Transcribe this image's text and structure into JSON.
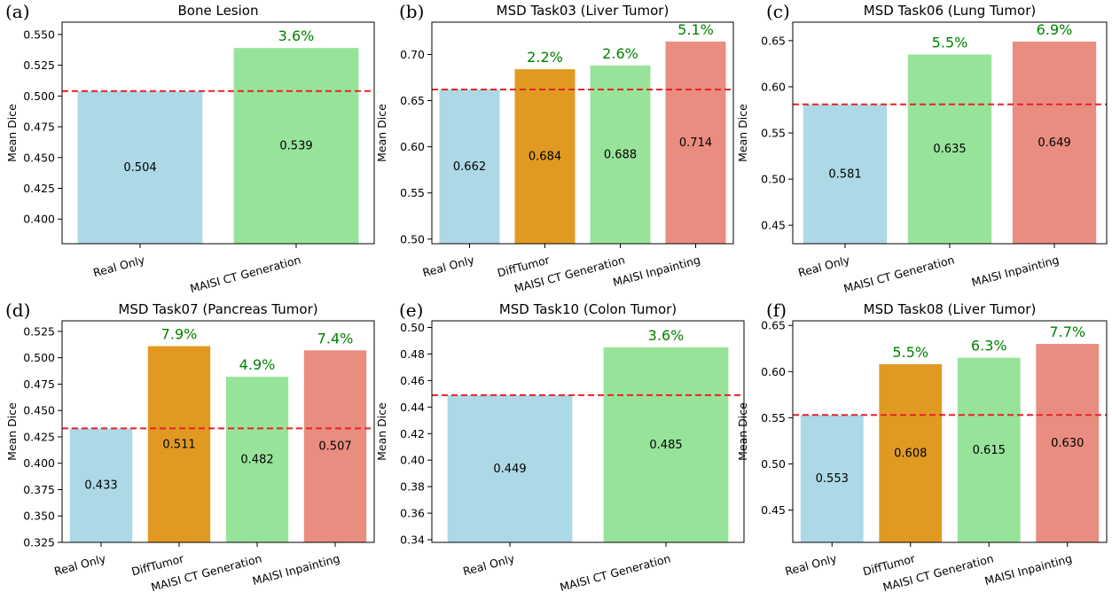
{
  "colors": {
    "Real Only": "#add8e6",
    "DiffTumor": "#e09a22",
    "MAISI CT Generation": "#98e39a",
    "MAISI Inpainting": "#e98d80",
    "baseline": "#e8212a",
    "improvement_text": "#008000"
  },
  "chart_data": [
    {
      "type": "bar",
      "panel": "(a)",
      "title": "Bone Lesion",
      "ylabel": "Mean Dice",
      "ylim": [
        0.38,
        0.56
      ],
      "yticks": [
        "0.400",
        "0.425",
        "0.450",
        "0.475",
        "0.500",
        "0.525",
        "0.550"
      ],
      "categories": [
        "Real Only",
        "MAISI CT Generation"
      ],
      "values": [
        0.504,
        0.539
      ],
      "value_labels": [
        "0.504",
        "0.539"
      ],
      "improvements": [
        "",
        "3.6%"
      ],
      "baseline": 0.504
    },
    {
      "type": "bar",
      "panel": "(b)",
      "title": "MSD Task03 (Liver Tumor)",
      "ylabel": "Mean Dice",
      "ylim": [
        0.495,
        0.735
      ],
      "yticks": [
        "0.50",
        "0.55",
        "0.60",
        "0.65",
        "0.70"
      ],
      "categories": [
        "Real Only",
        "DiffTumor",
        "MAISI CT Generation",
        "MAISI Inpainting"
      ],
      "values": [
        0.662,
        0.684,
        0.688,
        0.714
      ],
      "value_labels": [
        "0.662",
        "0.684",
        "0.688",
        "0.714"
      ],
      "improvements": [
        "",
        "2.2%",
        "2.6%",
        "5.1%"
      ],
      "baseline": 0.662
    },
    {
      "type": "bar",
      "panel": "(c)",
      "title": "MSD Task06 (Lung Tumor)",
      "ylabel": "Mean Dice",
      "ylim": [
        0.43,
        0.67
      ],
      "yticks": [
        "0.45",
        "0.50",
        "0.55",
        "0.60",
        "0.65"
      ],
      "categories": [
        "Real Only",
        "MAISI CT Generation",
        "MAISI Inpainting"
      ],
      "values": [
        0.581,
        0.635,
        0.649
      ],
      "value_labels": [
        "0.581",
        "0.635",
        "0.649"
      ],
      "improvements": [
        "",
        "5.5%",
        "6.9%"
      ],
      "baseline": 0.581
    },
    {
      "type": "bar",
      "panel": "(d)",
      "title": "MSD Task07 (Pancreas Tumor)",
      "ylabel": "Mean Dice",
      "ylim": [
        0.325,
        0.535
      ],
      "yticks": [
        "0.325",
        "0.350",
        "0.375",
        "0.400",
        "0.425",
        "0.450",
        "0.475",
        "0.500",
        "0.525"
      ],
      "categories": [
        "Real Only",
        "DiffTumor",
        "MAISI CT Generation",
        "MAISI Inpainting"
      ],
      "values": [
        0.433,
        0.511,
        0.482,
        0.507
      ],
      "value_labels": [
        "0.433",
        "0.511",
        "0.482",
        "0.507"
      ],
      "improvements": [
        "",
        "7.9%",
        "4.9%",
        "7.4%"
      ],
      "baseline": 0.433
    },
    {
      "type": "bar",
      "panel": "(e)",
      "title": "MSD Task10 (Colon Tumor)",
      "ylabel": "Mean Dice",
      "ylim": [
        0.338,
        0.505
      ],
      "yticks": [
        "0.34",
        "0.36",
        "0.38",
        "0.40",
        "0.42",
        "0.44",
        "0.46",
        "0.48",
        "0.50"
      ],
      "categories": [
        "Real Only",
        "MAISI CT Generation"
      ],
      "values": [
        0.449,
        0.485
      ],
      "value_labels": [
        "0.449",
        "0.485"
      ],
      "improvements": [
        "",
        "3.6%"
      ],
      "baseline": 0.449
    },
    {
      "type": "bar",
      "panel": "(f)",
      "title": "MSD Task08 (Liver Tumor)",
      "ylabel": "Mean Dice",
      "ylim": [
        0.415,
        0.655
      ],
      "yticks": [
        "0.45",
        "0.50",
        "0.55",
        "0.60",
        "0.65"
      ],
      "categories": [
        "Real Only",
        "DiffTumor",
        "MAISI CT Generation",
        "MAISI Inpainting"
      ],
      "values": [
        0.553,
        0.608,
        0.615,
        0.63
      ],
      "value_labels": [
        "0.553",
        "0.608",
        "0.615",
        "0.630"
      ],
      "improvements": [
        "",
        "5.5%",
        "6.3%",
        "7.7%"
      ],
      "baseline": 0.553
    }
  ]
}
